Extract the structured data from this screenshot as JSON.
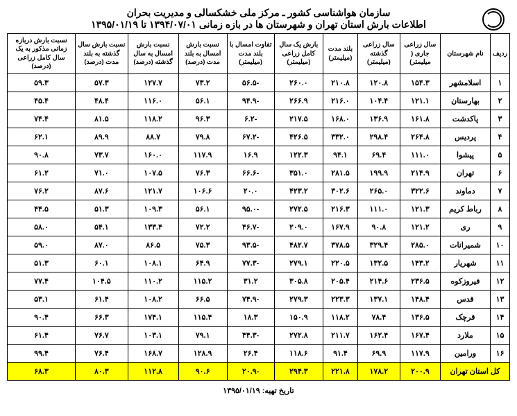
{
  "title1": "سازمان هواشناسی کشور ـ مرکز ملی خشکسالی و مدیریت بحران",
  "title2": "اطلاعات بارش استان تهران و شهرستان ها در بازه زمانی ۱۳۹۴/۰۷/۰۱ تا ۱۳۹۵/۰۱/۱۹",
  "footer": "تاریخ تهیه: ۱۳۹۵/۰۱/۱۹",
  "headers": [
    "ردیف",
    "نام شهرستان",
    "سال زراعی جاری ( میلیمتر)",
    "سال زراعی گذشته (میلیمتر)",
    "بلند مدت (میلیمتر)",
    "بارش یک سال کامل زراعی (میلیمتر)",
    "تفاوت امسال با بلند مدت (میلیمتر)",
    "نسبت بارش امسال به بلند مدت (درصد)",
    "نسبت بارش امسال به سال گذشته (درصد)",
    "نسبت بارش سال گذشته به بلند مدت (درصد)",
    "نسبت بارش دربازه زمانی مذکور به یک سال کامل زراعی (درصد)"
  ],
  "rows": [
    [
      "۱",
      "اسلامشهر",
      "۱۵۴.۳",
      "۱۲۰.۸",
      "۲۱۰.۸",
      "۲۶۰.۰",
      "-۵۶.۵",
      "۷۳.۲",
      "۱۲۷.۷",
      "۵۷.۳",
      "۵۹.۳"
    ],
    [
      "۲",
      "بهارستان",
      "۱۲۱.۱",
      "۱۰۴.۴",
      "۲۱۶.۰",
      "۲۶۶.۹",
      "-۹۴.۹",
      "۵۶.۱",
      "۱۱۶.۰",
      "۴۸.۴",
      "۴۵.۴"
    ],
    [
      "۳",
      "پاکدشت",
      "۱۶۱.۸",
      "۱۳۶.۹",
      "۱۶۸.۰",
      "۲۱۷.۵",
      "-۶.۲",
      "۹۶.۳",
      "۱۱۸.۲",
      "۸۱.۵",
      "۷۴.۴"
    ],
    [
      "۴",
      "پردیس",
      "۲۶۴.۸",
      "۲۹۸.۴",
      "۳۳۲.۰",
      "۴۲۶.۵",
      "-۶۷.۲",
      "۷۹.۸",
      "۸۸.۷",
      "۸۹.۹",
      "۶۲.۱"
    ],
    [
      "۵",
      "پیشوا",
      "۱۱۱.۰",
      "۶۹.۴",
      "۹۴.۱",
      "۱۲۲.۳",
      "۱۶.۹",
      "۱۱۷.۹",
      "۱۶۰.۰",
      "۷۳.۷",
      "۹۰.۸"
    ],
    [
      "۶",
      "تهران",
      "۲۱۴.۹",
      "۱۹۹.۹",
      "۲۸۱.۵",
      "۳۵۱.۰",
      "-۶۶.۶",
      "۷۶.۳",
      "۱۰۷.۵",
      "۷۱.۰",
      "۶۱.۲"
    ],
    [
      "۷",
      "دماوند",
      "۳۲۲.۶",
      "۲۶۵.۰",
      "۳۰۲.۶",
      "۴۲۳.۲",
      "۲۰.۰",
      "۱۰۶.۶",
      "۱۲۱.۷",
      "۸۷.۶",
      "۷۶.۲"
    ],
    [
      "۸",
      "رباط کریم",
      "۱۲۱.۳",
      "۱۱۱.۰",
      "۲۱۶.۳",
      "۲۷۲.۵",
      "-۹۵.۰",
      "۵۶.۱",
      "۱۰۹.۳",
      "۵۱.۳",
      "۴۴.۵"
    ],
    [
      "۹",
      "ری",
      "۱۲۱.۲",
      "۹۰.۸",
      "۱۶۷.۹",
      "۲۰۹.۰",
      "-۴۶.۷",
      "۷۲.۲",
      "۱۳۳.۴",
      "۵۴.۱",
      "۵۸.۰"
    ],
    [
      "۱۰",
      "شمیرانات",
      "۲۸۵.۰",
      "۳۲۹.۴",
      "۳۷۸.۵",
      "۴۸۲.۷",
      "-۹۳.۵",
      "۷۵.۳",
      "۸۶.۵",
      "۸۷.۰",
      "۵۹.۰"
    ],
    [
      "۱۱",
      "شهریار",
      "۱۴۳.۲",
      "۱۳۲.۵",
      "۲۲۰.۵",
      "۲۷۹.۱",
      "-۷۷.۳",
      "۶۴.۹",
      "۱۰۸.۱",
      "۶۰.۱",
      "۵۱.۳"
    ],
    [
      "۱۲",
      "فیروزکوه",
      "۲۳۶.۵",
      "۲۱۴.۶",
      "۲۰۵.۴",
      "۳۰۵.۸",
      "۳۱.۲",
      "۱۱۵.۲",
      "۱۱۰.۲",
      "۱۰۴.۵",
      "۷۷.۴"
    ],
    [
      "۱۳",
      "قدس",
      "۱۴۸.۴",
      "۱۳۷.۱",
      "۲۲۳.۳",
      "۲۷۹.۳",
      "-۷۴.۹",
      "۶۶.۵",
      "۱۰۸.۲",
      "۶۱.۴",
      "۵۳.۱"
    ],
    [
      "۱۴",
      "قرچک",
      "۱۳۶.۵",
      "۷۸.۴",
      "۱۱۸.۲",
      "۱۵۰.۹",
      "۱۸.۳",
      "۱۱۵.۴",
      "۱۷۴.۱",
      "۶۶.۳",
      "۹۰.۴"
    ],
    [
      "۱۵",
      "ملارد",
      "۱۶۷.۴",
      "۱۶۲.۴",
      "۲۱۱.۷",
      "۲۷۲.۸",
      "-۴۴.۳",
      "۷۹.۱",
      "۱۰۳.۱",
      "۷۶.۷",
      "۶۱.۴"
    ],
    [
      "۱۶",
      "ورامین",
      "۱۱۷.۹",
      "۶۹.۹",
      "۹۱.۴",
      "۱۱۸.۶",
      "۲۶.۴",
      "۱۲۸.۹",
      "۱۶۸.۷",
      "۷۶.۴",
      "۹۹.۴"
    ]
  ],
  "totals": [
    "",
    "کل استان تهران",
    "۲۰۰.۹",
    "۱۷۸.۲",
    "۲۲۱.۸",
    "۲۹۴.۳",
    "-۲۰.۹",
    "۹۰.۶",
    "۱۱۲.۸",
    "۸۰.۳",
    "۶۸.۳"
  ]
}
